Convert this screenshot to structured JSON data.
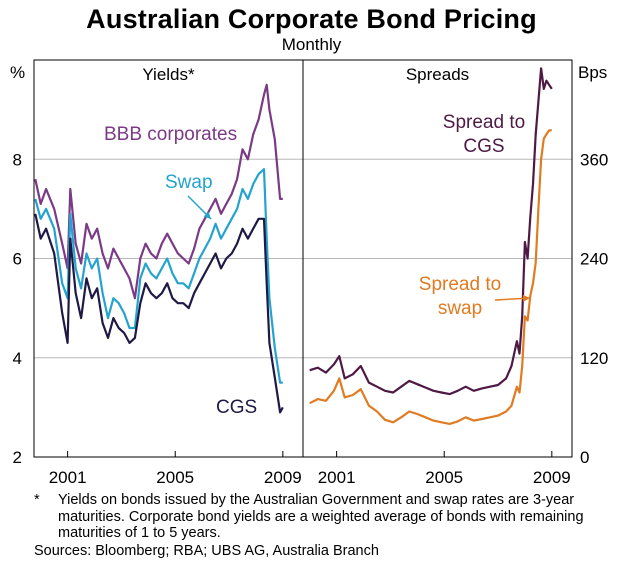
{
  "title": "Australian Corporate Bond Pricing",
  "subtitle": "Monthly",
  "footnote": {
    "marker": "*",
    "text": "Yields on bonds issued by the Australian Government and swap rates are 3-year maturities. Corporate bond yields are a weighted average of bonds with remaining maturities of 1 to 5 years."
  },
  "sources": "Sources: Bloomberg; RBA; UBS AG, Australia Branch",
  "colors": {
    "bbb": "#7a3a86",
    "swap": "#25a3cf",
    "cgs": "#1e1a45",
    "spread_cgs": "#4e1a45",
    "spread_swap": "#e07b22",
    "grid": "#b8b8b8",
    "frame": "#000000"
  },
  "chart_data": [
    {
      "type": "line",
      "panel": "left",
      "title": "Yields*",
      "ylabel": "%",
      "ylim": [
        2,
        10
      ],
      "yticks": [
        2,
        4,
        6,
        8
      ],
      "xlim": [
        1999.75,
        2009.75
      ],
      "xticks": [
        2001,
        2005,
        2009
      ],
      "xtick_labels": [
        "2001",
        "2005",
        "2009"
      ],
      "series": [
        {
          "name": "BBB corporates",
          "label_lines": [
            "BBB corporates"
          ],
          "x": [
            1999.8,
            2000.0,
            2000.2,
            2000.5,
            2000.8,
            2001.0,
            2001.1,
            2001.3,
            2001.5,
            2001.7,
            2001.9,
            2002.1,
            2002.3,
            2002.5,
            2002.7,
            2002.9,
            2003.1,
            2003.3,
            2003.5,
            2003.7,
            2003.9,
            2004.1,
            2004.3,
            2004.5,
            2004.7,
            2004.9,
            2005.1,
            2005.3,
            2005.5,
            2005.7,
            2005.9,
            2006.1,
            2006.3,
            2006.5,
            2006.7,
            2006.9,
            2007.1,
            2007.3,
            2007.5,
            2007.7,
            2007.9,
            2008.1,
            2008.3,
            2008.4,
            2008.5,
            2008.7,
            2008.9,
            2009.0
          ],
          "values": [
            7.6,
            7.1,
            7.4,
            7.0,
            6.3,
            5.8,
            7.4,
            6.3,
            5.9,
            6.7,
            6.4,
            6.6,
            6.1,
            5.8,
            6.2,
            6.0,
            5.8,
            5.6,
            5.2,
            6.0,
            6.3,
            6.1,
            6.0,
            6.3,
            6.5,
            6.3,
            6.1,
            6.0,
            5.9,
            6.2,
            6.6,
            6.8,
            7.0,
            7.2,
            6.9,
            7.1,
            7.3,
            7.6,
            8.2,
            8.0,
            8.5,
            8.8,
            9.3,
            9.5,
            9.0,
            8.4,
            7.2,
            7.2
          ]
        },
        {
          "name": "Swap",
          "label_lines": [
            "Swap"
          ],
          "x": [
            1999.8,
            2000.0,
            2000.2,
            2000.5,
            2000.8,
            2001.0,
            2001.1,
            2001.3,
            2001.5,
            2001.7,
            2001.9,
            2002.1,
            2002.3,
            2002.5,
            2002.7,
            2002.9,
            2003.1,
            2003.3,
            2003.5,
            2003.7,
            2003.9,
            2004.1,
            2004.3,
            2004.5,
            2004.7,
            2004.9,
            2005.1,
            2005.3,
            2005.5,
            2005.7,
            2005.9,
            2006.1,
            2006.3,
            2006.5,
            2006.7,
            2006.9,
            2007.1,
            2007.3,
            2007.5,
            2007.7,
            2007.9,
            2008.1,
            2008.3,
            2008.4,
            2008.5,
            2008.7,
            2008.9,
            2009.0
          ],
          "values": [
            7.2,
            6.8,
            7.0,
            6.6,
            5.5,
            5.2,
            6.9,
            5.8,
            5.4,
            6.1,
            5.8,
            6.0,
            5.3,
            4.8,
            5.2,
            5.1,
            4.9,
            4.6,
            4.6,
            5.6,
            5.9,
            5.7,
            5.6,
            5.8,
            6.0,
            5.7,
            5.5,
            5.5,
            5.4,
            5.7,
            6.0,
            6.2,
            6.4,
            6.7,
            6.4,
            6.6,
            6.8,
            7.0,
            7.4,
            7.2,
            7.5,
            7.7,
            7.8,
            6.4,
            5.2,
            4.2,
            3.5,
            3.5
          ]
        },
        {
          "name": "CGS",
          "label_lines": [
            "CGS"
          ],
          "x": [
            1999.8,
            2000.0,
            2000.2,
            2000.5,
            2000.8,
            2001.0,
            2001.1,
            2001.3,
            2001.5,
            2001.7,
            2001.9,
            2002.1,
            2002.3,
            2002.5,
            2002.7,
            2002.9,
            2003.1,
            2003.3,
            2003.5,
            2003.7,
            2003.9,
            2004.1,
            2004.3,
            2004.5,
            2004.7,
            2004.9,
            2005.1,
            2005.3,
            2005.5,
            2005.7,
            2005.9,
            2006.1,
            2006.3,
            2006.5,
            2006.7,
            2006.9,
            2007.1,
            2007.3,
            2007.5,
            2007.7,
            2007.9,
            2008.1,
            2008.3,
            2008.4,
            2008.5,
            2008.7,
            2008.9,
            2009.0
          ],
          "values": [
            6.9,
            6.4,
            6.6,
            6.1,
            4.9,
            4.3,
            6.4,
            5.3,
            4.8,
            5.6,
            5.2,
            5.4,
            4.7,
            4.4,
            4.8,
            4.6,
            4.5,
            4.3,
            4.4,
            5.1,
            5.5,
            5.3,
            5.2,
            5.3,
            5.5,
            5.2,
            5.1,
            5.1,
            5.0,
            5.3,
            5.5,
            5.7,
            5.9,
            6.1,
            5.8,
            6.0,
            6.1,
            6.3,
            6.6,
            6.4,
            6.6,
            6.8,
            6.8,
            5.5,
            4.3,
            3.6,
            2.9,
            3.0
          ]
        }
      ]
    },
    {
      "type": "line",
      "panel": "right",
      "title": "Spreads",
      "ylabel": "Bps",
      "ylim": [
        0,
        480
      ],
      "yticks": [
        0,
        120,
        240,
        360
      ],
      "xlim": [
        1999.75,
        2009.75
      ],
      "xticks": [
        2001,
        2005,
        2009
      ],
      "xtick_labels": [
        "2001",
        "2005",
        "2009"
      ],
      "series": [
        {
          "name": "Spread to CGS",
          "label_lines": [
            "Spread to",
            "CGS"
          ],
          "x": [
            2000.0,
            2000.3,
            2000.6,
            2000.9,
            2001.1,
            2001.3,
            2001.6,
            2001.9,
            2002.2,
            2002.5,
            2002.8,
            2003.1,
            2003.4,
            2003.7,
            2004.0,
            2004.3,
            2004.6,
            2004.9,
            2005.2,
            2005.5,
            2005.8,
            2006.1,
            2006.4,
            2006.7,
            2007.0,
            2007.3,
            2007.5,
            2007.7,
            2007.8,
            2007.9,
            2008.0,
            2008.1,
            2008.2,
            2008.3,
            2008.4,
            2008.5,
            2008.6,
            2008.7,
            2008.8,
            2008.9,
            2009.0
          ],
          "values": [
            105,
            108,
            102,
            112,
            122,
            95,
            100,
            110,
            90,
            85,
            80,
            78,
            85,
            92,
            88,
            84,
            80,
            78,
            76,
            80,
            85,
            80,
            83,
            85,
            87,
            95,
            110,
            140,
            125,
            170,
            260,
            240,
            290,
            330,
            390,
            430,
            470,
            445,
            455,
            450,
            445
          ]
        },
        {
          "name": "Spread to swap",
          "label_lines": [
            "Spread to",
            "swap"
          ],
          "x": [
            2000.0,
            2000.3,
            2000.6,
            2000.9,
            2001.1,
            2001.3,
            2001.6,
            2001.9,
            2002.2,
            2002.5,
            2002.8,
            2003.1,
            2003.4,
            2003.7,
            2004.0,
            2004.3,
            2004.6,
            2004.9,
            2005.2,
            2005.5,
            2005.8,
            2006.1,
            2006.4,
            2006.7,
            2007.0,
            2007.3,
            2007.5,
            2007.7,
            2007.8,
            2007.9,
            2008.0,
            2008.1,
            2008.2,
            2008.3,
            2008.4,
            2008.5,
            2008.6,
            2008.7,
            2008.8,
            2008.9,
            2009.0
          ],
          "values": [
            65,
            70,
            68,
            80,
            95,
            72,
            75,
            82,
            62,
            55,
            45,
            42,
            48,
            55,
            52,
            48,
            44,
            42,
            40,
            43,
            48,
            44,
            46,
            48,
            50,
            55,
            62,
            85,
            78,
            110,
            170,
            165,
            195,
            210,
            235,
            300,
            360,
            385,
            390,
            395,
            395
          ]
        }
      ]
    }
  ]
}
